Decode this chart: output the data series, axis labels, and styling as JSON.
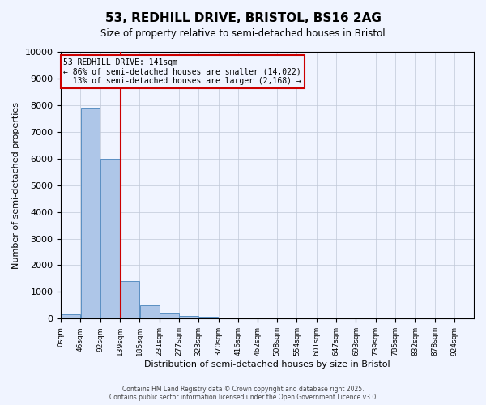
{
  "title": "53, REDHILL DRIVE, BRISTOL, BS16 2AG",
  "subtitle": "Size of property relative to semi-detached houses in Bristol",
  "xlabel": "Distribution of semi-detached houses by size in Bristol",
  "ylabel": "Number of semi-detached properties",
  "footer_line1": "Contains HM Land Registry data © Crown copyright and database right 2025.",
  "footer_line2": "Contains public sector information licensed under the Open Government Licence v3.0",
  "bin_edges": [
    0,
    46,
    92,
    139,
    185,
    231,
    277,
    323,
    370,
    416,
    462,
    508,
    554,
    601,
    647,
    693,
    739,
    785,
    832,
    878,
    924
  ],
  "bar_heights": [
    150,
    7900,
    6000,
    1400,
    500,
    200,
    100,
    60,
    10,
    0,
    0,
    0,
    0,
    0,
    0,
    0,
    0,
    0,
    0,
    0
  ],
  "property_size": 141,
  "property_label": "53 REDHILL DRIVE: 141sqm",
  "pct_smaller": 86,
  "count_smaller": 14022,
  "pct_larger": 13,
  "count_larger": 2168,
  "bar_color": "#aec6e8",
  "bar_edge_color": "#5a8fc2",
  "red_line_color": "#cc0000",
  "background_color": "#f0f4ff",
  "ylim": [
    0,
    10000
  ],
  "yticks": [
    0,
    1000,
    2000,
    3000,
    4000,
    5000,
    6000,
    7000,
    8000,
    9000,
    10000
  ],
  "tick_labels": [
    "0sqm",
    "46sqm",
    "92sqm",
    "139sqm",
    "185sqm",
    "231sqm",
    "277sqm",
    "323sqm",
    "370sqm",
    "416sqm",
    "462sqm",
    "508sqm",
    "554sqm",
    "601sqm",
    "647sqm",
    "693sqm",
    "739sqm",
    "785sqm",
    "832sqm",
    "878sqm",
    "924sqm"
  ]
}
